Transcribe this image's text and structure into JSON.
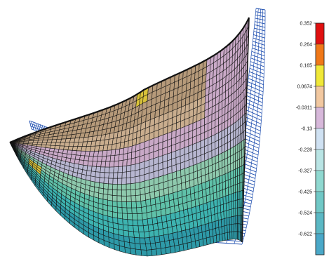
{
  "colorbar": {
    "ticks": [
      "0.352",
      "0.264",
      "0.165",
      "0.0674",
      "-0.0311",
      "-0.13",
      "-0.228",
      "-0.327",
      "-0.425",
      "-0.524",
      "-0.622"
    ],
    "colors": [
      "#e01010",
      "#f07818",
      "#f0e838",
      "#f2c8a0",
      "#d7b8da",
      "#cfe1f2",
      "#b9e4e4",
      "#8fd8d0",
      "#70c8c6",
      "#5bb8c4",
      "#4aa8c8"
    ]
  },
  "surface": {
    "mesh_color": "#1f4fb0",
    "edge_color": "#111111",
    "palette": [
      "#2e9aa8",
      "#3db3b0",
      "#5fc1a9",
      "#8ec9ad",
      "#b7b6d0",
      "#c9a9c7",
      "#c9ad8e",
      "#b69a7a"
    ],
    "highlight_color": "#d9c23a"
  }
}
